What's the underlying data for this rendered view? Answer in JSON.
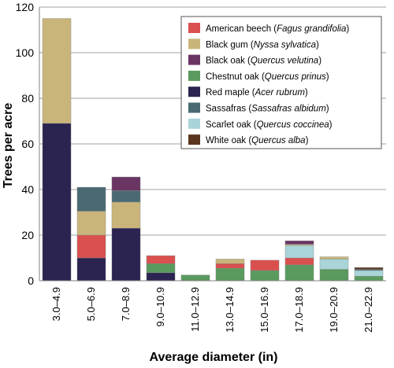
{
  "chart_data": {
    "type": "bar",
    "stacked": true,
    "xlabel": "Average diameter (in)",
    "ylabel": "Trees per acre",
    "ylim": [
      0,
      120
    ],
    "yticks": [
      "0",
      "20",
      "40",
      "60",
      "80",
      "100",
      "120"
    ],
    "grid": "horizontal",
    "legend_position": "top-right",
    "categories": [
      "3.0–4.9",
      "5.0–6.9",
      "7.0–8.9",
      "9.0–10.9",
      "11.0–12.9",
      "13.0–14.9",
      "15.0–16.9",
      "17.0–18.9",
      "19.0–20.9",
      "21.0–22.9"
    ],
    "series": [
      {
        "name": "Red maple",
        "latin": "Acer rubrum",
        "color": "#2b2350",
        "values": [
          69,
          10,
          23,
          3.5,
          0,
          0,
          0,
          0,
          0,
          0
        ]
      },
      {
        "name": "Chestnut oak",
        "latin": "Quercus prinus",
        "color": "#5a9a5e",
        "values": [
          0,
          0,
          0,
          4,
          2.5,
          5.5,
          4.5,
          7,
          5,
          2
        ]
      },
      {
        "name": "American beech",
        "latin": "Fagus grandifolia",
        "color": "#d9504f",
        "values": [
          0,
          10,
          0,
          3.5,
          0,
          2,
          4.5,
          3,
          0,
          0
        ]
      },
      {
        "name": "Scarlet oak",
        "latin": "Quercus coccinea",
        "color": "#a9d4d8",
        "values": [
          0,
          0,
          0,
          0,
          0,
          0,
          0,
          5.5,
          4.5,
          2.5
        ]
      },
      {
        "name": "Black gum",
        "latin": "Nyssa sylvatica",
        "color": "#c9b57a",
        "values": [
          46,
          10.5,
          11.5,
          0,
          0,
          2,
          0,
          0.5,
          1,
          0
        ]
      },
      {
        "name": "Sassafras",
        "latin": "Sassafras albidum",
        "color": "#4a6a72",
        "values": [
          0,
          10.5,
          5,
          0,
          0,
          0,
          0,
          0,
          0,
          0.5
        ]
      },
      {
        "name": "Black oak",
        "latin": "Quercus velutina",
        "color": "#6a3563",
        "values": [
          0,
          0,
          6,
          0,
          0,
          0,
          0,
          1.5,
          0,
          0
        ]
      },
      {
        "name": "White oak",
        "latin": "Quercus alba",
        "color": "#5b3520",
        "values": [
          0,
          0,
          0,
          0,
          0,
          0,
          0,
          0,
          0,
          0.8
        ]
      }
    ],
    "legend_order": [
      "American beech",
      "Black gum",
      "Black oak",
      "Chestnut oak",
      "Red maple",
      "Sassafras",
      "Scarlet oak",
      "White oak"
    ]
  }
}
